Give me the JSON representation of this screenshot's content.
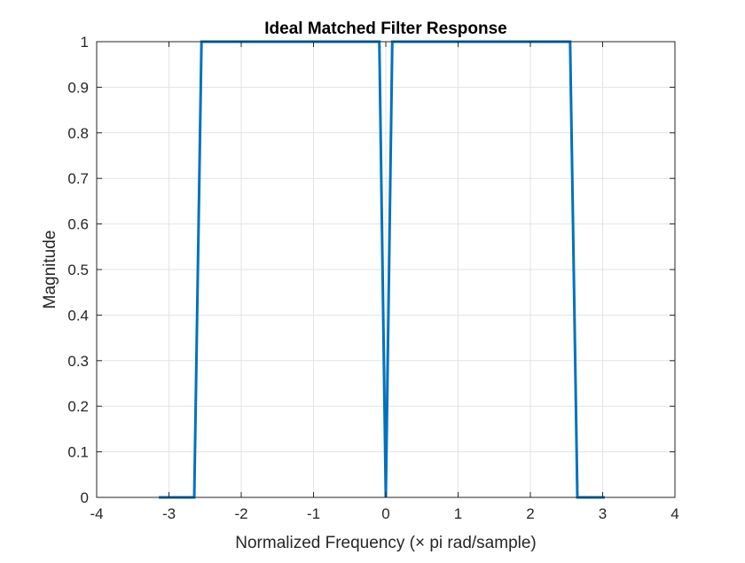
{
  "chart_data": {
    "type": "line",
    "title": "Ideal Matched Filter Response",
    "xlabel": "Normalized Frequency (× pi rad/sample)",
    "ylabel": "Magnitude",
    "xlim": [
      -4,
      4
    ],
    "ylim": [
      0,
      1
    ],
    "xticks": [
      -4,
      -3,
      -2,
      -1,
      0,
      1,
      2,
      3,
      4
    ],
    "xtick_labels": [
      "-4",
      "-3",
      "-2",
      "-1",
      "0",
      "1",
      "2",
      "3",
      "4"
    ],
    "yticks": [
      0,
      0.1,
      0.2,
      0.3,
      0.4,
      0.5,
      0.6,
      0.7,
      0.8,
      0.9,
      1
    ],
    "ytick_labels": [
      "0",
      "0.1",
      "0.2",
      "0.3",
      "0.4",
      "0.5",
      "0.6",
      "0.7",
      "0.8",
      "0.9",
      "1"
    ],
    "grid": true,
    "series": [
      {
        "color": "#0072BD",
        "x": [
          -3.14,
          -2.65,
          -2.55,
          -0.09,
          0.0,
          0.09,
          2.55,
          2.65,
          3.03
        ],
        "y": [
          0,
          0,
          1,
          1,
          0,
          1,
          1,
          0,
          0
        ]
      }
    ]
  }
}
